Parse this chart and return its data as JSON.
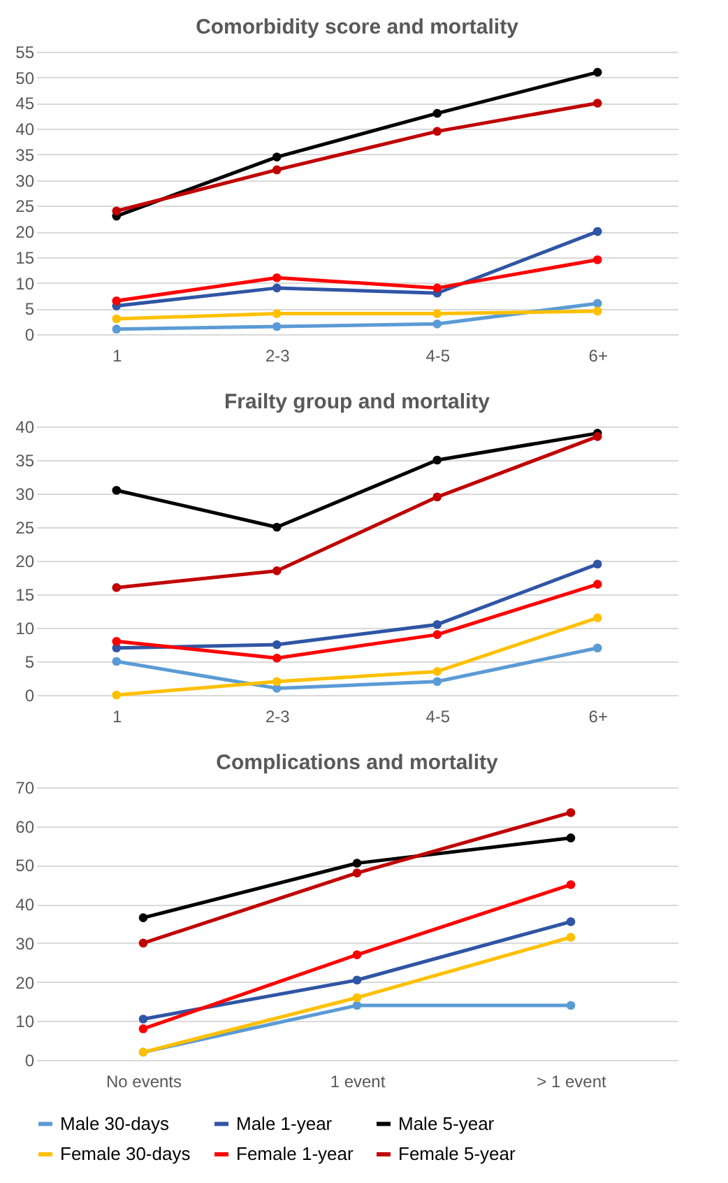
{
  "chart_data": [
    {
      "type": "line",
      "title": "Comorbidity score and mortality",
      "categories": [
        "1",
        "2-3",
        "4-5",
        "6+"
      ],
      "ylim": [
        0,
        55
      ],
      "yticks": [
        0,
        5,
        10,
        15,
        20,
        25,
        30,
        35,
        40,
        45,
        50,
        55
      ],
      "grid": "y",
      "marker": "circle",
      "series": [
        {
          "color": "#5b9bd5",
          "values": [
            1,
            1.5,
            2,
            6
          ]
        },
        {
          "color": "#2f55a4",
          "values": [
            5.5,
            9,
            8,
            20
          ]
        },
        {
          "color": "#000000",
          "values": [
            23,
            34.5,
            43,
            51
          ]
        },
        {
          "color": "#ffc000",
          "values": [
            3,
            4,
            4,
            4.5
          ]
        },
        {
          "color": "#ff0000",
          "values": [
            6.5,
            11,
            9,
            14.5
          ]
        },
        {
          "color": "#c00000",
          "values": [
            24,
            32,
            39.5,
            45
          ]
        }
      ]
    },
    {
      "type": "line",
      "title": "Frailty group and mortality",
      "categories": [
        "1",
        "2-3",
        "4-5",
        "6+"
      ],
      "ylim": [
        0,
        40
      ],
      "yticks": [
        0,
        5,
        10,
        15,
        20,
        25,
        30,
        35,
        40
      ],
      "grid": "y",
      "marker": "circle",
      "series": [
        {
          "color": "#5b9bd5",
          "values": [
            5,
            1,
            2,
            7
          ]
        },
        {
          "color": "#2f55a4",
          "values": [
            7,
            7.5,
            10.5,
            19.5
          ]
        },
        {
          "color": "#000000",
          "values": [
            30.5,
            25,
            35,
            39
          ]
        },
        {
          "color": "#ffc000",
          "values": [
            0,
            2,
            3.5,
            11.5
          ]
        },
        {
          "color": "#ff0000",
          "values": [
            8,
            5.5,
            9,
            16.5
          ]
        },
        {
          "color": "#c00000",
          "values": [
            16,
            18.5,
            29.5,
            38.5
          ]
        }
      ]
    },
    {
      "type": "line",
      "title": "Complications and mortality",
      "categories": [
        "No events",
        "1 event",
        "> 1 event"
      ],
      "ylim": [
        0,
        70
      ],
      "yticks": [
        0,
        10,
        20,
        30,
        40,
        50,
        60,
        70
      ],
      "grid": "y",
      "marker": "circle",
      "legend": "bottom",
      "series": [
        {
          "name": "Male 30-days",
          "color": "#5b9bd5",
          "values": [
            2,
            14,
            14
          ]
        },
        {
          "name": "Male 1-year",
          "color": "#2f55a4",
          "values": [
            10.5,
            20.5,
            35.5
          ]
        },
        {
          "name": "Male 5-year",
          "color": "#000000",
          "values": [
            36.5,
            50.5,
            57
          ]
        },
        {
          "name": "Female 30-days",
          "color": "#ffc000",
          "values": [
            2,
            16,
            31.5
          ]
        },
        {
          "name": "Female 1-year",
          "color": "#ff0000",
          "values": [
            8,
            27,
            45
          ]
        },
        {
          "name": "Female 5-year",
          "color": "#c00000",
          "values": [
            30,
            48,
            63.5
          ]
        }
      ]
    }
  ]
}
